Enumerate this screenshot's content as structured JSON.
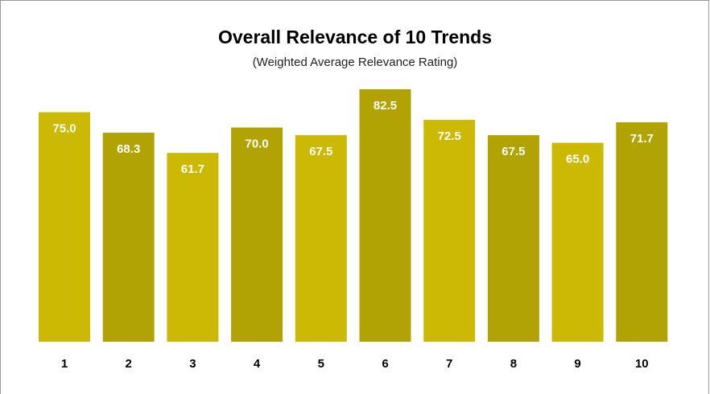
{
  "chart_data": {
    "type": "bar",
    "title": "Overall Relevance of 10 Trends",
    "subtitle": "(Weighted Average Relevance Rating)",
    "categories": [
      "1",
      "2",
      "3",
      "4",
      "5",
      "6",
      "7",
      "8",
      "9",
      "10"
    ],
    "values": [
      75.0,
      68.3,
      61.7,
      70.0,
      67.5,
      82.5,
      72.5,
      67.5,
      65.0,
      71.7
    ],
    "value_labels": [
      "75.0",
      "68.3",
      "61.7",
      "70.0",
      "67.5",
      "82.5",
      "72.5",
      "67.5",
      "65.0",
      "71.7"
    ],
    "colors": [
      "#ccb905",
      "#b1a303",
      "#ccb905",
      "#b1a303",
      "#ccb905",
      "#b1a303",
      "#ccb905",
      "#b1a303",
      "#ccb905",
      "#b1a303"
    ]
  }
}
